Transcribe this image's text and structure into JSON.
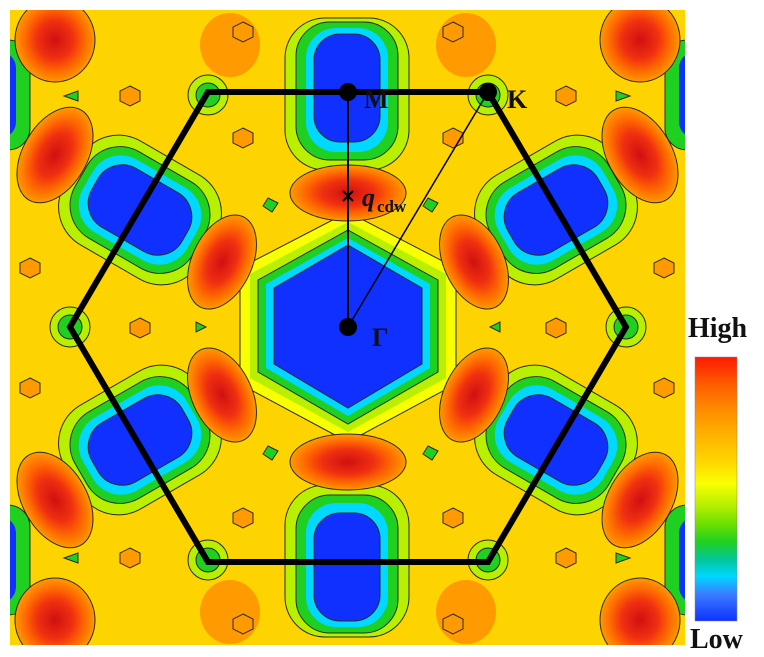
{
  "labels": {
    "M": "M",
    "K": "K",
    "Gamma": "Γ",
    "q": "q",
    "q_sub": "cdw"
  },
  "colorbar": {
    "high": "High",
    "low": "Low",
    "colors": [
      "#ff1a00",
      "#ff5a00",
      "#ff8c00",
      "#ffb400",
      "#ffd800",
      "#f8ff00",
      "#b8f000",
      "#70e000",
      "#20d020",
      "#00c8a0",
      "#00d8ff",
      "#3a7cff",
      "#1030ff"
    ]
  },
  "map_colors": {
    "background": "#fdd300",
    "low": "#1030ff",
    "mid_low": "#00d8ff",
    "mid": "#20d020",
    "mid_high": "#f8ff00",
    "high_orange": "#ff9a00",
    "peak": "#f03010",
    "contour": "#2a2a2a",
    "bz_boundary": "#000000"
  }
}
